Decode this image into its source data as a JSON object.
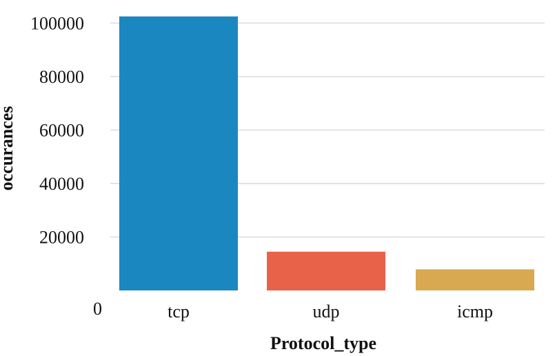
{
  "chart_data": {
    "type": "bar",
    "title": "",
    "xlabel": "Protocol_type",
    "ylabel": "occurances",
    "categories": [
      "tcp",
      "udp",
      "icmp"
    ],
    "values": [
      102500,
      14500,
      7900
    ],
    "colors": [
      "#1b87c0",
      "#e8624a",
      "#d8a951"
    ],
    "ylim": [
      0,
      104000
    ],
    "yticks": [
      0,
      20000,
      40000,
      60000,
      80000,
      100000
    ],
    "ytick_labels": [
      "0",
      "20000",
      "40000",
      "60000",
      "80000",
      "100000"
    ],
    "grid": true,
    "legend": "none"
  }
}
